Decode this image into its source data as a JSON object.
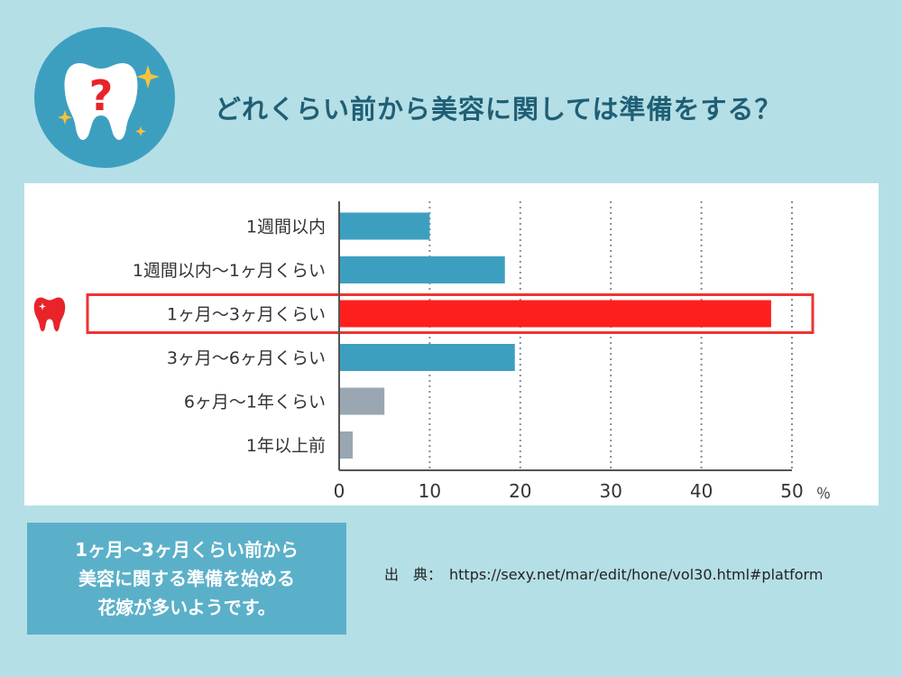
{
  "title": "どれくらい前から美容に関しては準備をする？",
  "chart_data": {
    "type": "bar",
    "orientation": "horizontal",
    "categories": [
      "1週間以内",
      "1週間以内〜1ヶ月くらい",
      "1ヶ月〜3ヶ月くらい",
      "3ヶ月〜6ヶ月くらい",
      "6ヶ月〜1年くらい",
      "1年以上前"
    ],
    "values": [
      10,
      18.3,
      47.7,
      19.4,
      5,
      1.5
    ],
    "highlight_index": 2,
    "xlim": [
      0,
      50
    ],
    "xticks": [
      0,
      10,
      20,
      30,
      40,
      50
    ],
    "unit_label": "％",
    "grid": true,
    "colors": {
      "default": "#3d9fc0",
      "highlight": "#ff1e1e",
      "muted": "#9aa6b2",
      "highlight_border": "#ee3333"
    },
    "bar_color_keys": [
      "default",
      "default",
      "highlight",
      "default",
      "muted",
      "muted"
    ]
  },
  "summary": {
    "lines": [
      "1ヶ月〜3ヶ月くらい前から",
      "美容に関する準備を始める",
      "花嫁が多いようです。"
    ]
  },
  "source": {
    "label": "出　典：",
    "url": "https://sexy.net/mar/edit/hone/vol30.html#platform"
  }
}
